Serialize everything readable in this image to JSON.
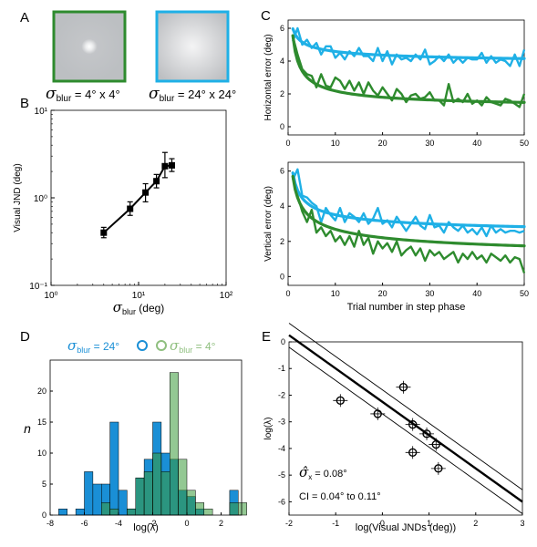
{
  "panel_letters": {
    "a": "A",
    "b": "B",
    "c": "C",
    "d": "D",
    "e": "E"
  },
  "colors": {
    "cyan": "#1fb0e6",
    "green": "#2e8b2e",
    "green_light": "#8fbf7f",
    "blue_fill": "#1a8fd6",
    "teal_fill": "#2e8b6e",
    "green_fill": "#3a9a3a",
    "black": "#000000"
  },
  "panel_a": {
    "left_label": {
      "sym": "σ",
      "sub": "blur",
      "rest": " = 4° x 4°"
    },
    "right_label": {
      "sym": "σ",
      "sub": "blur",
      "rest": " = 24° x 24°"
    }
  },
  "chart_data": [
    {
      "id": "B",
      "type": "scatter",
      "scale": "log-log",
      "xlabel": {
        "sym": "σ",
        "sub": "blur",
        "rest": " (deg)"
      },
      "ylabel": "Visual JND (deg)",
      "xlim": [
        1,
        100
      ],
      "ylim": [
        0.1,
        10
      ],
      "xtick_labels": [
        "10⁰",
        "10¹",
        "10²"
      ],
      "ytick_labels": [
        "10⁻¹",
        "10⁰",
        "10¹"
      ],
      "points": [
        {
          "x": 4,
          "y": 0.4,
          "err": [
            0.35,
            0.46
          ]
        },
        {
          "x": 8,
          "y": 0.75,
          "err": [
            0.63,
            0.9
          ]
        },
        {
          "x": 12,
          "y": 1.15,
          "err": [
            0.9,
            1.45
          ]
        },
        {
          "x": 16,
          "y": 1.55,
          "err": [
            1.3,
            1.85
          ]
        },
        {
          "x": 20,
          "y": 2.3,
          "err": [
            1.7,
            3.3
          ]
        },
        {
          "x": 24,
          "y": 2.35,
          "err": [
            2.0,
            2.8
          ]
        }
      ]
    },
    {
      "id": "C-top",
      "type": "line",
      "xlabel": "",
      "ylabel": "Horizontal error (deg)",
      "xlim": [
        0,
        50
      ],
      "ylim": [
        -0.5,
        6.5
      ],
      "xticks": [
        0,
        10,
        20,
        30,
        40,
        50
      ],
      "yticks": [
        0,
        2,
        4,
        6
      ],
      "series": [
        {
          "color": "cyan",
          "values": [
            5.2,
            6.0,
            5.0,
            5.3,
            4.8,
            5.1,
            4.4,
            4.9,
            4.9,
            4.2,
            4.5,
            4.1,
            4.6,
            4.3,
            4.8,
            4.3,
            4.3,
            4.0,
            4.8,
            4.0,
            4.6,
            3.8,
            4.4,
            4.1,
            4.2,
            4.0,
            4.4,
            4.1,
            4.7,
            3.8,
            4.0,
            4.3,
            4.0,
            4.4,
            3.9,
            4.2,
            3.9,
            4.2,
            4.1,
            4.1,
            4.5,
            3.9,
            4.3,
            3.9,
            4.1,
            4.0,
            3.7,
            4.4,
            3.7,
            4.7
          ]
        },
        {
          "color": "green",
          "values": [
            5.5,
            4.4,
            3.5,
            3.2,
            3.1,
            2.4,
            3.2,
            2.5,
            2.4,
            3.0,
            2.8,
            2.3,
            2.8,
            2.2,
            2.7,
            2.0,
            2.7,
            2.2,
            1.9,
            2.4,
            2.0,
            1.6,
            2.3,
            2.0,
            1.5,
            1.9,
            2.0,
            1.7,
            1.8,
            2.1,
            1.6,
            1.6,
            1.3,
            2.6,
            1.5,
            1.7,
            1.5,
            2.0,
            1.4,
            1.6,
            1.3,
            1.8,
            1.5,
            1.4,
            1.3,
            1.7,
            1.6,
            1.4,
            1.2,
            2.0
          ]
        }
      ],
      "fits": [
        {
          "color": "cyan",
          "a": 3.67,
          "b": 2.3,
          "c": 0.4
        },
        {
          "color": "green",
          "a": 1.05,
          "b": 4.5,
          "c": 0.6
        }
      ]
    },
    {
      "id": "C-bottom",
      "type": "line",
      "xlabel": "Trial number in step phase",
      "ylabel": "Vertical error (deg)",
      "xlim": [
        0,
        50
      ],
      "ylim": [
        -0.5,
        6.5
      ],
      "xticks": [
        0,
        10,
        20,
        30,
        40,
        50
      ],
      "yticks": [
        0,
        2,
        4,
        6
      ],
      "series": [
        {
          "color": "cyan",
          "values": [
            5.5,
            6.1,
            4.6,
            4.5,
            4.2,
            4.0,
            3.1,
            3.9,
            3.5,
            3.2,
            3.9,
            3.1,
            3.6,
            3.4,
            3.1,
            3.6,
            3.0,
            3.3,
            3.9,
            3.0,
            3.2,
            2.8,
            3.4,
            3.0,
            2.6,
            3.0,
            3.4,
            2.9,
            2.7,
            3.5,
            2.8,
            2.9,
            2.5,
            3.1,
            2.8,
            2.6,
            2.9,
            2.5,
            2.7,
            2.4,
            2.8,
            2.3,
            2.9,
            2.5,
            2.7,
            2.5,
            2.6,
            2.6,
            2.5,
            2.6
          ]
        },
        {
          "color": "green",
          "values": [
            5.6,
            4.6,
            3.7,
            3.1,
            3.8,
            2.5,
            2.8,
            2.3,
            2.6,
            2.0,
            2.3,
            1.8,
            2.3,
            1.7,
            2.6,
            1.8,
            2.2,
            1.3,
            2.0,
            1.6,
            1.9,
            1.4,
            2.0,
            1.2,
            1.5,
            1.7,
            1.2,
            1.6,
            0.9,
            1.5,
            1.2,
            1.4,
            1.0,
            1.2,
            1.4,
            0.8,
            1.3,
            1.0,
            1.4,
            1.0,
            1.2,
            0.8,
            1.3,
            1.1,
            0.9,
            1.2,
            0.8,
            1.1,
            1.0,
            0.2
          ]
        }
      ],
      "fits": [
        {
          "color": "cyan",
          "a": 2.2,
          "b": 3.7,
          "c": 0.45
        },
        {
          "color": "green",
          "a": 0.7,
          "b": 5.0,
          "c": 0.4
        }
      ]
    },
    {
      "id": "D",
      "type": "bar",
      "subtype": "histogram",
      "ylabel": "n",
      "xlabel": "log(λ)",
      "xlim": [
        -8,
        3.2
      ],
      "ylim": [
        0,
        25
      ],
      "xticks": [
        -8,
        -6,
        -4,
        -2,
        0,
        2
      ],
      "yticks": [
        0,
        5,
        10,
        15,
        20
      ],
      "bin_width": 0.5,
      "legend": {
        "entries": [
          {
            "sym": "σ",
            "sub": "blur",
            "rest": " = 24°",
            "color": "blue_fill"
          },
          {
            "sym": "σ",
            "sub": "blur",
            "rest": " = 4°",
            "color": "green_light"
          }
        ],
        "placement": "top"
      },
      "series": [
        {
          "name": "σblur = 24°",
          "color": "blue_fill",
          "bins": [
            [
              -7.5,
              1
            ],
            [
              -6.5,
              1
            ],
            [
              -6.0,
              7
            ],
            [
              -5.5,
              5
            ],
            [
              -5.0,
              5
            ],
            [
              -4.5,
              15
            ],
            [
              -4.0,
              4
            ],
            [
              -3.5,
              1
            ],
            [
              -3.0,
              6
            ],
            [
              -2.5,
              9
            ],
            [
              -2.0,
              15
            ],
            [
              -1.5,
              10
            ],
            [
              -1.0,
              9
            ],
            [
              -0.5,
              4
            ],
            [
              0.0,
              3
            ],
            [
              0.5,
              1
            ],
            [
              2.5,
              4
            ]
          ]
        },
        {
          "name": "σblur = 4°",
          "color": "green_light",
          "bins": [
            [
              -5.0,
              2
            ],
            [
              -4.5,
              1
            ],
            [
              -3.5,
              1
            ],
            [
              -3.0,
              6
            ],
            [
              -2.5,
              7
            ],
            [
              -2.0,
              10
            ],
            [
              -1.5,
              7
            ],
            [
              -1.0,
              23
            ],
            [
              -0.5,
              9
            ],
            [
              0.0,
              4
            ],
            [
              0.5,
              2
            ],
            [
              1.0,
              1
            ],
            [
              2.5,
              2
            ],
            [
              3.0,
              2
            ]
          ]
        }
      ]
    },
    {
      "id": "E",
      "type": "scatter",
      "xlabel": "log(Visual JNDs (deg))",
      "ylabel": "log(λ)",
      "xlim": [
        -2,
        3
      ],
      "ylim": [
        -6.5,
        0
      ],
      "xticks": [
        -2,
        -1,
        0,
        1,
        2,
        3
      ],
      "yticks": [
        0,
        -1,
        -2,
        -3,
        -4,
        -5,
        -6
      ],
      "points": [
        {
          "x": -0.9,
          "y": -2.2
        },
        {
          "x": -0.1,
          "y": -2.7
        },
        {
          "x": 0.45,
          "y": -1.7
        },
        {
          "x": 0.65,
          "y": -3.1
        },
        {
          "x": 0.65,
          "y": -4.15
        },
        {
          "x": 0.95,
          "y": -3.45
        },
        {
          "x": 1.15,
          "y": -3.85
        },
        {
          "x": 1.2,
          "y": -4.75
        }
      ],
      "fit": {
        "slope": -1.25,
        "intercept": -2.25,
        "band": 0.45
      },
      "annotation": {
        "line1_sym": "σ̂",
        "line1_sub": "x",
        "line1_rest": " = 0.08°",
        "line2": "CI  = 0.04° to 0.11°"
      }
    }
  ]
}
